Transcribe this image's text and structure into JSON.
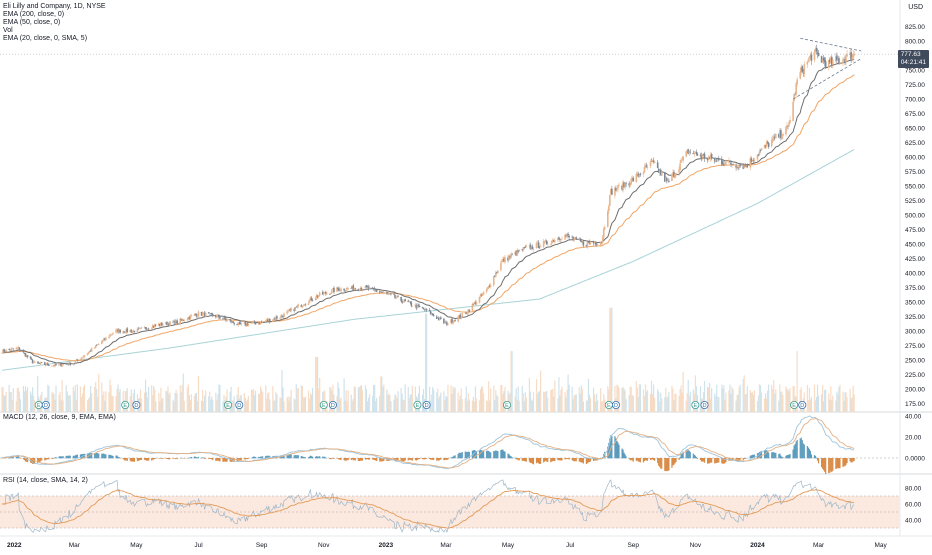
{
  "header": {
    "symbol_line": "Eli Lilly and Company, 1D, NYSE",
    "indicators": [
      "EMA (200, close, 0)",
      "EMA (50, close, 0)",
      "Vol",
      "EMA (20, close, 0, SMA, 5)"
    ],
    "currency": "USD"
  },
  "price_tag": {
    "price": "777.63",
    "countdown": "04:21:41"
  },
  "macd_label": "MACD (12, 26, close, 9, EMA, EMA)",
  "rsi_label": "RSI (14, close, SMA, 14, 2)",
  "colors": {
    "up": "#e9b48a",
    "down": "#7b8794",
    "ema200": "#a8d3d6",
    "ema50": "#f0a566",
    "ema20": "#6d6d6d",
    "vol_up": "#f7dcc6",
    "vol_down": "#cfe3ec",
    "macd_line": "#9fc5dc",
    "signal_line": "#e4b184",
    "hist_pos": "#5b9bbd",
    "hist_neg": "#d98a45",
    "rsi": "#9fb6c8",
    "rsi_ma": "#e39a55",
    "rsi_band": "#fbe9e0"
  },
  "chart_data": [
    {
      "type": "candlestick",
      "title": "Eli Lilly and Company, 1D, NYSE",
      "y_ticks": [
        825,
        800,
        775,
        750,
        725,
        700,
        675,
        650,
        625,
        600,
        575,
        550,
        525,
        500,
        475,
        450,
        425,
        400,
        375,
        350,
        325,
        300,
        275,
        250,
        225,
        200,
        175
      ],
      "ylim": [
        160,
        840
      ],
      "x_ticks": [
        "2022",
        "Mar",
        "May",
        "Jul",
        "Sep",
        "Nov",
        "2023",
        "Mar",
        "May",
        "Jul",
        "Sep",
        "Nov",
        "2024",
        "Mar",
        "May"
      ],
      "x_tick_bold": [
        "2022",
        "2023",
        "2024"
      ],
      "close_path": [
        [
          "2021-12-20",
          265
        ],
        [
          "2022-01-05",
          270
        ],
        [
          "2022-01-20",
          245
        ],
        [
          "2022-02-10",
          240
        ],
        [
          "2022-03-01",
          245
        ],
        [
          "2022-03-20",
          270
        ],
        [
          "2022-04-10",
          300
        ],
        [
          "2022-05-01",
          300
        ],
        [
          "2022-05-20",
          310
        ],
        [
          "2022-06-10",
          315
        ],
        [
          "2022-07-01",
          330
        ],
        [
          "2022-07-20",
          325
        ],
        [
          "2022-08-10",
          310
        ],
        [
          "2022-09-01",
          315
        ],
        [
          "2022-09-20",
          325
        ],
        [
          "2022-10-10",
          345
        ],
        [
          "2022-10-25",
          360
        ],
        [
          "2022-11-15",
          372
        ],
        [
          "2022-12-10",
          375
        ],
        [
          "2022-12-31",
          365
        ],
        [
          "2023-01-20",
          350
        ],
        [
          "2023-02-10",
          335
        ],
        [
          "2023-03-01",
          312
        ],
        [
          "2023-03-20",
          330
        ],
        [
          "2023-04-10",
          370
        ],
        [
          "2023-04-25",
          420
        ],
        [
          "2023-05-15",
          440
        ],
        [
          "2023-06-05",
          450
        ],
        [
          "2023-06-25",
          465
        ],
        [
          "2023-07-15",
          450
        ],
        [
          "2023-08-01",
          455
        ],
        [
          "2023-08-10",
          540
        ],
        [
          "2023-08-31",
          560
        ],
        [
          "2023-09-20",
          590
        ],
        [
          "2023-10-05",
          555
        ],
        [
          "2023-10-25",
          610
        ],
        [
          "2023-11-10",
          600
        ],
        [
          "2023-12-01",
          590
        ],
        [
          "2023-12-20",
          585
        ],
        [
          "2024-01-10",
          620
        ],
        [
          "2024-01-31",
          650
        ],
        [
          "2024-02-10",
          740
        ],
        [
          "2024-02-25",
          780
        ],
        [
          "2024-03-10",
          760
        ],
        [
          "2024-03-25",
          770
        ],
        [
          "2024-04-07",
          777.63
        ]
      ],
      "ema200_path": [
        [
          "2021-12-20",
          232
        ],
        [
          "2022-06-01",
          270
        ],
        [
          "2022-12-01",
          320
        ],
        [
          "2023-06-01",
          355
        ],
        [
          "2023-09-01",
          420
        ],
        [
          "2024-01-01",
          520
        ],
        [
          "2024-04-07",
          615
        ]
      ],
      "volume_spikes": [
        [
          "2022-10-25",
          255
        ],
        [
          "2023-02-10",
          330
        ],
        [
          "2023-05-05",
          265
        ],
        [
          "2023-08-10",
          340
        ],
        [
          "2024-02-10",
          265
        ]
      ],
      "event_markers": [
        [
          "2022-01-25",
          "E"
        ],
        [
          "2022-02-01",
          "D"
        ],
        [
          "2022-04-20",
          "E"
        ],
        [
          "2022-05-01",
          "D"
        ],
        [
          "2022-07-30",
          "E"
        ],
        [
          "2022-08-10",
          "D"
        ],
        [
          "2022-11-01",
          "E"
        ],
        [
          "2022-11-10",
          "D"
        ],
        [
          "2023-02-01",
          "E"
        ],
        [
          "2023-02-10",
          "D"
        ],
        [
          "2023-04-30",
          "E"
        ],
        [
          "2023-08-08",
          "E"
        ],
        [
          "2023-08-15",
          "D"
        ],
        [
          "2023-11-01",
          "E"
        ],
        [
          "2023-11-10",
          "D"
        ],
        [
          "2024-02-06",
          "E"
        ],
        [
          "2024-02-14",
          "D"
        ]
      ]
    },
    {
      "type": "line",
      "title": "MACD (12, 26, close, 9, EMA, EMA)",
      "y_ticks": [
        40,
        20,
        0
      ],
      "y_tick_labels": [
        "40.00",
        "20.00",
        "0.0000"
      ]
    },
    {
      "type": "line",
      "title": "RSI (14, close, SMA, 14, 2)",
      "y_ticks": [
        80,
        60,
        40
      ],
      "y_tick_labels": [
        "80.00",
        "60.00",
        "40.00"
      ],
      "band": [
        30,
        70
      ]
    }
  ]
}
